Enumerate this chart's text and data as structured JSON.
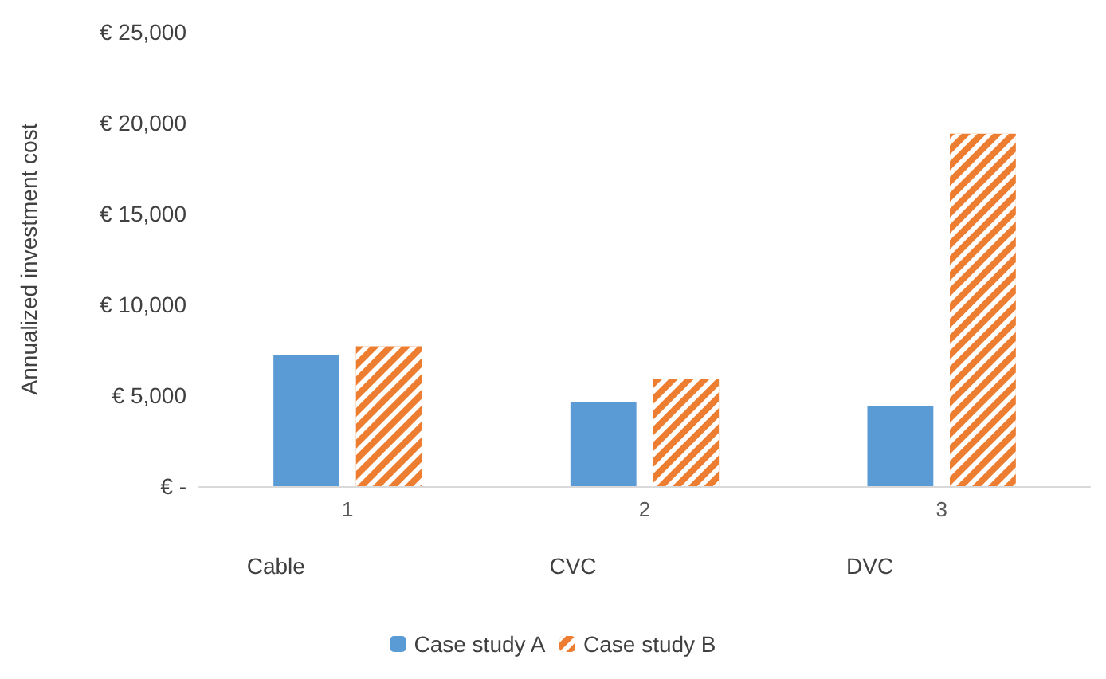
{
  "chart_data": {
    "type": "bar",
    "ylabel": "Annualized investment cost",
    "categories": [
      "1",
      "2",
      "3"
    ],
    "series": [
      {
        "name": "Case study A",
        "color": "#5b9bd5",
        "values": [
          7200,
          4600,
          4400
        ]
      },
      {
        "name": "Case study B",
        "color": "#ed7d31",
        "values": [
          7700,
          5900,
          19400
        ]
      }
    ],
    "ylim": [
      0,
      25000
    ],
    "yticks": [
      {
        "value": 0,
        "label": "€ -"
      },
      {
        "value": 5000,
        "label": "€ 5,000"
      },
      {
        "value": 10000,
        "label": "€ 10,000"
      },
      {
        "value": 15000,
        "label": "€ 15,000"
      },
      {
        "value": 20000,
        "label": "€ 20,000"
      },
      {
        "value": 25000,
        "label": "€ 25,000"
      }
    ],
    "annotations": [
      "Cable",
      "CVC",
      "DVC"
    ],
    "grid": false,
    "legend": "bottom"
  }
}
